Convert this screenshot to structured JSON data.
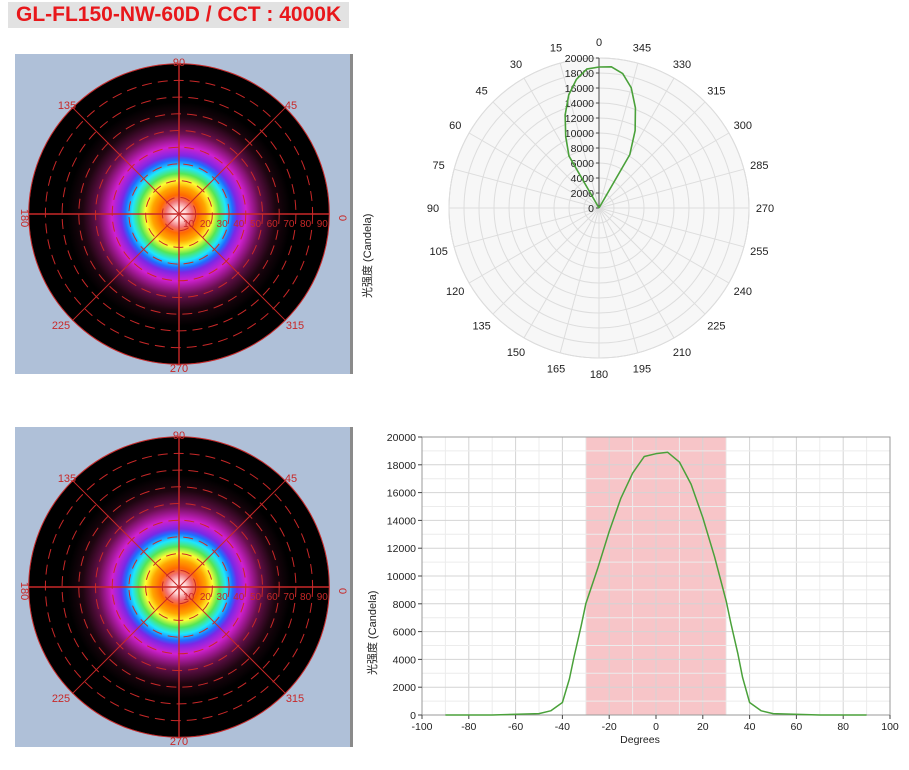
{
  "title": "GL-FL150-NW-60D / CCT : 4000K",
  "colors": {
    "title_text": "#e8171b",
    "title_bg": "#e2e2e2",
    "iso_bg": "#afc0d8",
    "grid_red": "#c82828",
    "curve_green": "#4aa13a",
    "beam_band": "#f7c5c8"
  },
  "isolux_diagram_top": {
    "angle_labels": [
      "90",
      "45",
      "0",
      "315",
      "270",
      "225",
      "180",
      "135"
    ],
    "radial_labels": [
      "10",
      "20",
      "30",
      "40",
      "50",
      "60",
      "70",
      "80",
      "90"
    ],
    "side_label": "光强度 (Candela)"
  },
  "isolux_diagram_bottom": {
    "angle_labels": [
      "90",
      "45",
      "0",
      "315",
      "270",
      "225",
      "180",
      "135"
    ],
    "radial_labels": [
      "10",
      "20",
      "30",
      "40",
      "50",
      "60",
      "70",
      "80",
      "90"
    ]
  },
  "chart_data": [
    {
      "type": "polar",
      "angle_labels": [
        "0",
        "15",
        "30",
        "45",
        "60",
        "75",
        "90",
        "105",
        "120",
        "135",
        "150",
        "165",
        "180",
        "195",
        "210",
        "225",
        "240",
        "255",
        "270",
        "285",
        "300",
        "315",
        "330",
        "345"
      ],
      "radial_ticks": [
        0,
        2000,
        4000,
        6000,
        8000,
        10000,
        12000,
        14000,
        16000,
        18000,
        20000
      ],
      "rlim": [
        0,
        20000
      ],
      "grid": true,
      "series": [
        {
          "angle_deg": [
            -30,
            -25,
            -20,
            -15,
            -10,
            -5,
            0,
            5,
            10,
            15,
            20,
            25,
            30
          ],
          "values": [
            8000,
            10500,
            13200,
            15600,
            17400,
            18600,
            18800,
            18900,
            18200,
            16600,
            14200,
            11400,
            8200
          ]
        }
      ]
    },
    {
      "type": "line",
      "xlabel": "Degrees",
      "ylabel": "光强度 (Candela)",
      "xlim": [
        -100,
        100
      ],
      "ylim": [
        0,
        20000
      ],
      "xticks": [
        -100,
        -80,
        -60,
        -40,
        -20,
        0,
        20,
        40,
        60,
        80,
        100
      ],
      "yticks": [
        0,
        2000,
        4000,
        6000,
        8000,
        10000,
        12000,
        14000,
        16000,
        18000,
        20000
      ],
      "grid": true,
      "shaded_region": [
        -30,
        30
      ],
      "series": [
        {
          "x": [
            -90,
            -70,
            -50,
            -45,
            -40,
            -37,
            -35,
            -32,
            -30,
            -25,
            -20,
            -15,
            -10,
            -5,
            0,
            5,
            10,
            15,
            20,
            25,
            30,
            32,
            35,
            37,
            40,
            45,
            50,
            70,
            90
          ],
          "values": [
            0,
            0,
            100,
            300,
            900,
            2600,
            4200,
            6400,
            8000,
            10500,
            13200,
            15600,
            17400,
            18600,
            18800,
            18900,
            18200,
            16600,
            14200,
            11400,
            8200,
            6600,
            4400,
            2700,
            900,
            300,
            100,
            0,
            0
          ]
        }
      ]
    }
  ]
}
